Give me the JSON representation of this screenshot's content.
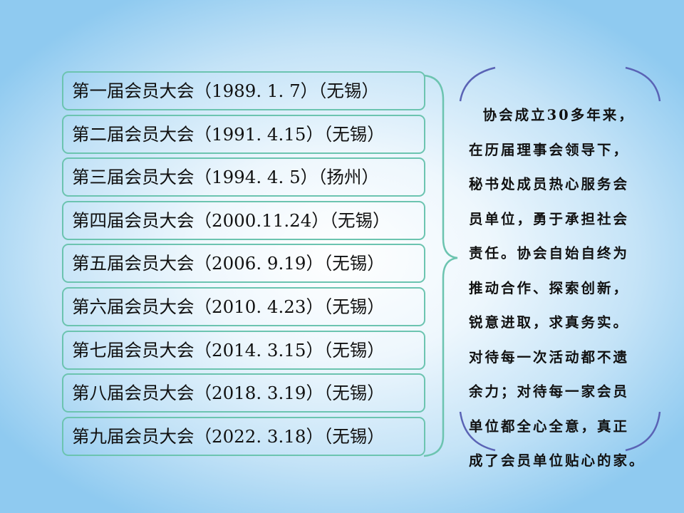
{
  "meetings": [
    "第一届会员大会（1989. 1. 7）（无锡）",
    "第二届会员大会（1991. 4.15）（无锡）",
    "第三届会员大会（1994. 4. 5）（扬州）",
    "第四届会员大会（2000.11.24）（无锡）",
    "第五届会员大会（2006. 9.19）（无锡）",
    "第六届会员大会（2010. 4.23）（无锡）",
    "第七届会员大会（2014. 3.15）（无锡）",
    "第八届会员大会（2018. 3.19）（无锡）",
    "第九届会员大会（2022. 3.18）（无锡）"
  ],
  "summary_lines": [
    "  协会成立30多年来，",
    "在历届理事会领导下，",
    "秘书处成员热心服务会",
    "员单位，勇于承担社会",
    "责任。协会自始自终为",
    "推动合作、探索创新，",
    "锐意进取，求真务实。",
    "对待每一次活动都不遗",
    "余力；对待每一家会员",
    "单位都全心全意，真正",
    "成了会员单位贴心的家。"
  ],
  "colors": {
    "box_border": "#6cc4b0",
    "brace": "#6cc4b0",
    "panel_corners": "#5a63b5"
  }
}
